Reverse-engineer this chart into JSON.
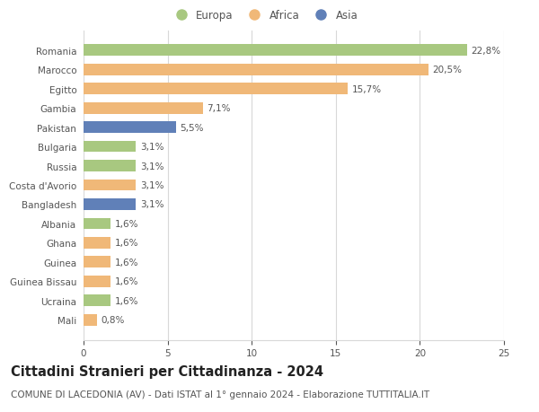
{
  "categories": [
    "Romania",
    "Marocco",
    "Egitto",
    "Gambia",
    "Pakistan",
    "Bulgaria",
    "Russia",
    "Costa d'Avorio",
    "Bangladesh",
    "Albania",
    "Ghana",
    "Guinea",
    "Guinea Bissau",
    "Ucraina",
    "Mali"
  ],
  "values": [
    22.8,
    20.5,
    15.7,
    7.1,
    5.5,
    3.1,
    3.1,
    3.1,
    3.1,
    1.6,
    1.6,
    1.6,
    1.6,
    1.6,
    0.8
  ],
  "labels": [
    "22,8%",
    "20,5%",
    "15,7%",
    "7,1%",
    "5,5%",
    "3,1%",
    "3,1%",
    "3,1%",
    "3,1%",
    "1,6%",
    "1,6%",
    "1,6%",
    "1,6%",
    "1,6%",
    "0,8%"
  ],
  "colors": [
    "#a8c880",
    "#f0b878",
    "#f0b878",
    "#f0b878",
    "#6080b8",
    "#a8c880",
    "#a8c880",
    "#f0b878",
    "#6080b8",
    "#a8c880",
    "#f0b878",
    "#f0b878",
    "#f0b878",
    "#a8c880",
    "#f0b878"
  ],
  "legend_labels": [
    "Europa",
    "Africa",
    "Asia"
  ],
  "legend_colors": [
    "#a8c880",
    "#f0b878",
    "#6080b8"
  ],
  "title": "Cittadini Stranieri per Cittadinanza - 2024",
  "subtitle": "COMUNE DI LACEDONIA (AV) - Dati ISTAT al 1° gennaio 2024 - Elaborazione TUTTITALIA.IT",
  "xlim": [
    0,
    25
  ],
  "xticks": [
    0,
    5,
    10,
    15,
    20,
    25
  ],
  "bg_color": "#ffffff",
  "grid_color": "#d8d8d8",
  "bar_height": 0.6,
  "title_fontsize": 10.5,
  "subtitle_fontsize": 7.5,
  "label_fontsize": 7.5,
  "tick_fontsize": 7.5,
  "legend_fontsize": 8.5,
  "text_color": "#555555",
  "title_color": "#222222"
}
